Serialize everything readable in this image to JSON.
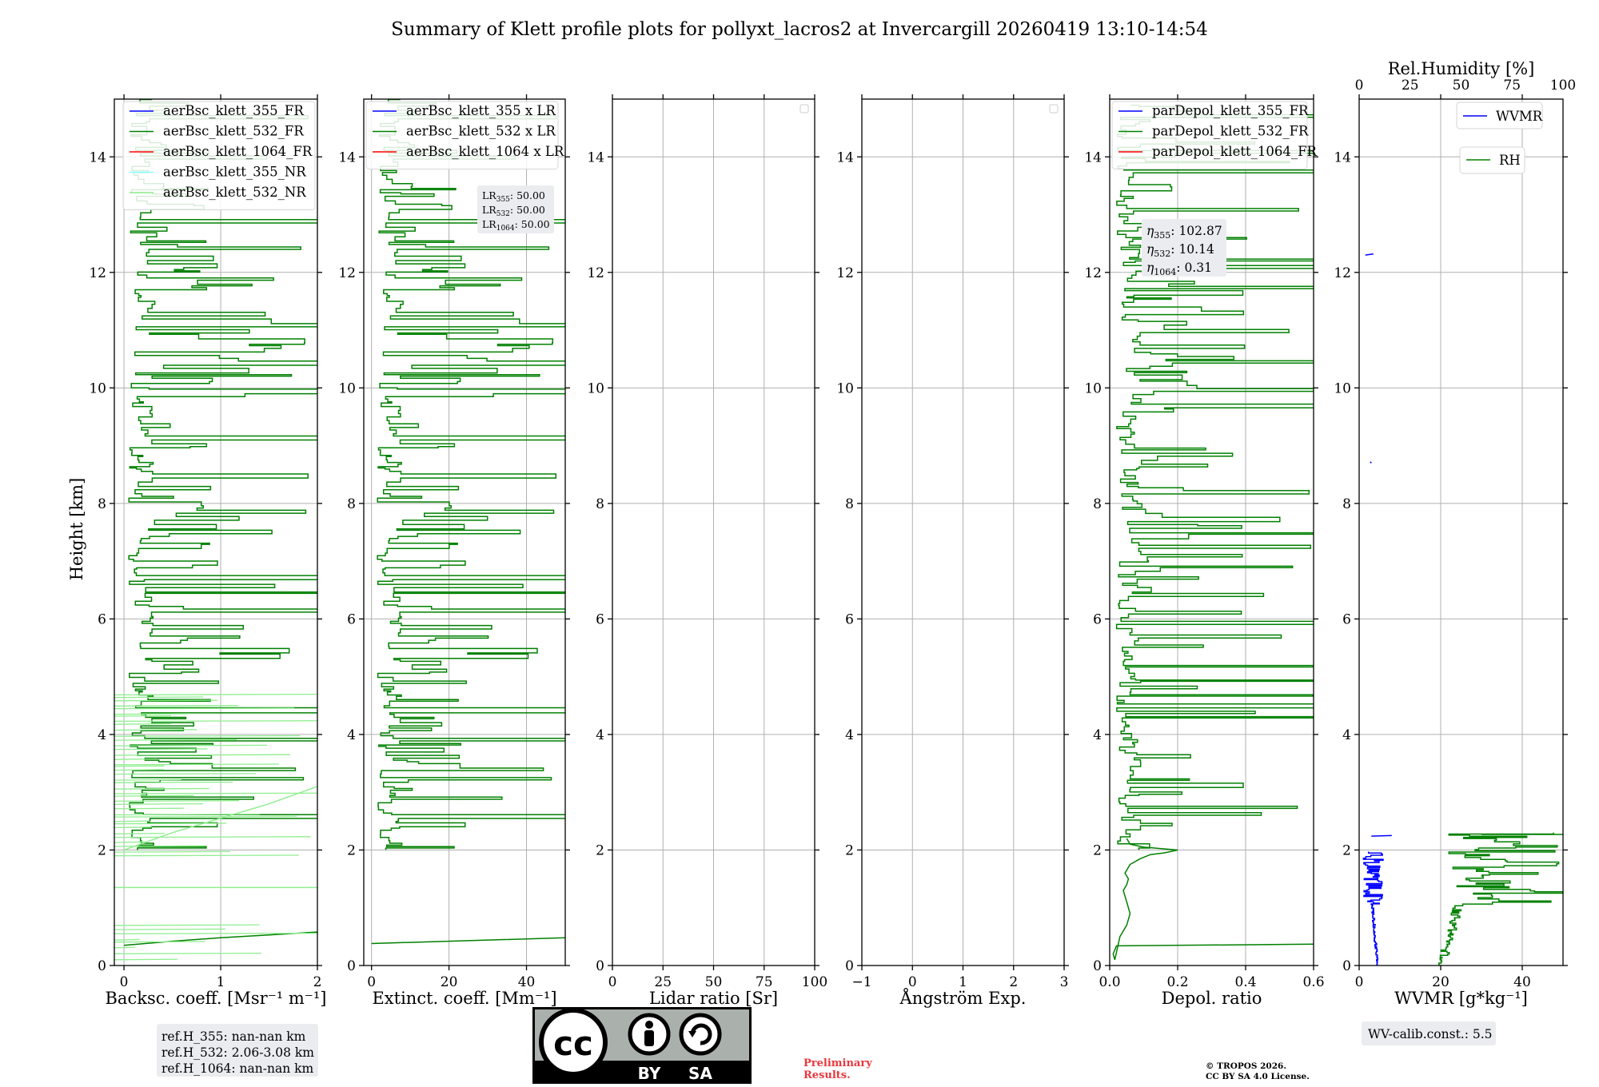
{
  "figure": {
    "title": "Summary of Klett profile plots for pollyxt_lacros2 at Invercargill 20260419 13:10-14:54",
    "ylabel": "Height [km]"
  },
  "colors": {
    "blue": "#0000ff",
    "green": "#008000",
    "red": "#ff0000",
    "cyan": "#80ffff",
    "lightgreen": "#90ee90"
  },
  "chart_data": [
    {
      "type": "line",
      "id": "bsc",
      "xlabel": "Backsc. coeff. [Msr⁻¹ m⁻¹]",
      "xlim": [
        -0.1,
        2
      ],
      "xticks": [
        {
          "v": 0,
          "label": "0"
        },
        {
          "v": 1,
          "label": "1"
        },
        {
          "v": 2,
          "label": "2"
        }
      ],
      "ylim": [
        0,
        15
      ],
      "yticks": [
        0,
        2,
        4,
        6,
        8,
        10,
        12,
        14
      ],
      "legend": [
        {
          "label": "aerBsc_klett_355_FR",
          "color": "#0000ff"
        },
        {
          "label": "aerBsc_klett_532_FR",
          "color": "#008000"
        },
        {
          "label": "aerBsc_klett_1064_FR",
          "color": "#ff0000"
        },
        {
          "label": "aerBsc_klett_355_NR",
          "color": "#80ffff"
        },
        {
          "label": "aerBsc_klett_532_NR",
          "color": "#90ee90"
        }
      ],
      "series": [
        {
          "name": "aerBsc_klett_532_FR",
          "color": "#008000",
          "kind": "spiky",
          "ranges": [
            [
              2.0,
              15.0
            ]
          ],
          "xmin": -0.1,
          "xmax": 2.0,
          "base": 0.05,
          "seed": 11
        },
        {
          "name": "aerBsc_klett_532_FR",
          "color": "#008000",
          "kind": "points",
          "x": [
            0.0,
            0.5,
            1.0,
            1.5,
            2.0
          ],
          "y": [
            0.35,
            0.42,
            0.48,
            0.53,
            0.58
          ]
        },
        {
          "name": "aerBsc_klett_532_NR",
          "color": "#90ee90",
          "kind": "hlines",
          "ranges": [
            [
              0.1,
              0.75
            ],
            [
              1.9,
              4.7
            ]
          ],
          "xmin": -0.1,
          "xmax": 2.0,
          "seed": 7
        },
        {
          "name": "aerBsc_klett_532_NR",
          "color": "#90ee90",
          "kind": "points",
          "x": [
            0.0,
            0.5,
            1.0,
            1.5,
            2.0
          ],
          "y": [
            2.0,
            2.3,
            2.55,
            2.8,
            3.1
          ]
        },
        {
          "name": "aerBsc_klett_532_NR",
          "color": "#90ee90",
          "kind": "points",
          "x": [
            -0.1,
            2.0
          ],
          "y": [
            1.35,
            1.35
          ]
        }
      ]
    },
    {
      "type": "line",
      "id": "ext",
      "xlabel": "Extinct. coeff. [Mm⁻¹]",
      "xlim": [
        -2,
        50
      ],
      "xticks": [
        {
          "v": 0,
          "label": "0"
        },
        {
          "v": 20,
          "label": "20"
        },
        {
          "v": 40,
          "label": "40"
        }
      ],
      "ylim": [
        0,
        15
      ],
      "yticks": [
        0,
        2,
        4,
        6,
        8,
        10,
        12,
        14
      ],
      "legend": [
        {
          "label": "aerBsc_klett_355 x LR",
          "color": "#0000ff"
        },
        {
          "label": "aerBsc_klett_532 x LR",
          "color": "#008000"
        },
        {
          "label": "aerBsc_klett_1064 x LR",
          "color": "#ff0000"
        }
      ],
      "series": [
        {
          "name": "aerBsc_klett_532 x LR",
          "color": "#008000",
          "kind": "spiky",
          "ranges": [
            [
              2.0,
              15.0
            ]
          ],
          "xmin": -2,
          "xmax": 50,
          "base": 1.5,
          "seed": 11
        },
        {
          "name": "aerBsc_klett_532 x LR",
          "color": "#008000",
          "kind": "points",
          "x": [
            0,
            25,
            50
          ],
          "y": [
            0.38,
            0.43,
            0.48
          ]
        }
      ]
    },
    {
      "type": "line",
      "id": "lr",
      "xlabel": "Lidar ratio [Sr]",
      "xlim": [
        0,
        100
      ],
      "xticks": [
        {
          "v": 0,
          "label": "0"
        },
        {
          "v": 25,
          "label": "25"
        },
        {
          "v": 50,
          "label": "50"
        },
        {
          "v": 75,
          "label": "75"
        },
        {
          "v": 100,
          "label": "100"
        }
      ],
      "ylim": [
        0,
        15
      ],
      "yticks": [
        0,
        2,
        4,
        6,
        8,
        10,
        12,
        14
      ],
      "series": []
    },
    {
      "type": "line",
      "id": "ang",
      "xlabel": "Ångström Exp.",
      "xlim": [
        -1,
        3
      ],
      "xticks": [
        {
          "v": -1,
          "label": "−1"
        },
        {
          "v": 0,
          "label": "0"
        },
        {
          "v": 1,
          "label": "1"
        },
        {
          "v": 2,
          "label": "2"
        },
        {
          "v": 3,
          "label": "3"
        }
      ],
      "ylim": [
        0,
        15
      ],
      "yticks": [
        0,
        2,
        4,
        6,
        8,
        10,
        12,
        14
      ],
      "series": []
    },
    {
      "type": "line",
      "id": "dep",
      "xlabel": "Depol. ratio",
      "xlim": [
        0,
        0.6
      ],
      "xticks": [
        {
          "v": 0,
          "label": "0.0"
        },
        {
          "v": 0.2,
          "label": "0.2"
        },
        {
          "v": 0.4,
          "label": "0.4"
        },
        {
          "v": 0.6,
          "label": "0.6"
        }
      ],
      "ylim": [
        0,
        15
      ],
      "yticks": [
        0,
        2,
        4,
        6,
        8,
        10,
        12,
        14
      ],
      "legend": [
        {
          "label": "parDepol_klett_355_FR",
          "color": "#0000ff"
        },
        {
          "label": "parDepol_klett_532_FR",
          "color": "#008000"
        },
        {
          "label": "parDepol_klett_1064_FR",
          "color": "#ff0000"
        }
      ],
      "series": [
        {
          "name": "parDepol_klett_532_FR",
          "color": "#008000",
          "kind": "spiky",
          "ranges": [
            [
              2.0,
              14.9
            ]
          ],
          "xmin": 0,
          "xmax": 0.6,
          "base": 0.02,
          "seed": 5
        },
        {
          "name": "parDepol_klett_532_FR",
          "color": "#008000",
          "kind": "points",
          "x": [
            0.6,
            0.02,
            0.01,
            0.015,
            0.03,
            0.05,
            0.06,
            0.05,
            0.04,
            0.05,
            0.055,
            0.045,
            0.06,
            0.09,
            0.12,
            0.16,
            0.2,
            0.1,
            0.06,
            0.05
          ],
          "y": [
            0.37,
            0.34,
            0.2,
            0.1,
            0.5,
            0.7,
            0.9,
            1.1,
            1.3,
            1.4,
            1.5,
            1.6,
            1.75,
            1.85,
            1.92,
            1.95,
            2.0,
            2.05,
            2.1,
            2.2
          ]
        }
      ]
    },
    {
      "type": "line",
      "id": "wv",
      "xlabel": "WVMR [g*kg⁻¹]",
      "xlim": [
        0,
        50
      ],
      "xticks": [
        {
          "v": 0,
          "label": "0"
        },
        {
          "v": 20,
          "label": "20"
        },
        {
          "v": 40,
          "label": "40"
        }
      ],
      "top_xlabel": "Rel.Humidity [%]",
      "top_xlim": [
        0,
        100
      ],
      "top_xticks": [
        {
          "v": 0,
          "label": "0"
        },
        {
          "v": 25,
          "label": "25"
        },
        {
          "v": 50,
          "label": "50"
        },
        {
          "v": 75,
          "label": "75"
        },
        {
          "v": 100,
          "label": "100"
        }
      ],
      "ylim": [
        0,
        15
      ],
      "yticks": [
        0,
        2,
        4,
        6,
        8,
        10,
        12,
        14
      ],
      "legend": [
        {
          "label": "WVMR",
          "color": "#0000ff"
        },
        {
          "label": "RH",
          "color": "#008000"
        }
      ],
      "series": [
        {
          "name": "RH",
          "color": "#008000",
          "kind": "rh"
        },
        {
          "name": "WVMR",
          "color": "#0000ff",
          "kind": "wvmr"
        },
        {
          "name": "WVMR",
          "color": "#0000ff",
          "kind": "points",
          "x": [
            1.5,
            3.5
          ],
          "y": [
            12.3,
            12.32
          ]
        },
        {
          "name": "WVMR",
          "color": "#0000ff",
          "kind": "points",
          "x": [
            2.7,
            3.0
          ],
          "y": [
            8.72,
            8.7
          ]
        }
      ]
    }
  ],
  "annotations": {
    "lr": [
      "LR",
      "355",
      ": 50.00",
      "LR",
      "532",
      ": 50.00",
      "LR",
      "1064",
      ": 50.00"
    ],
    "eta": [
      "η",
      "355",
      ": 102.87",
      "η",
      "532",
      ": 10.14",
      "η",
      "1064",
      ": 0.31"
    ],
    "refh": [
      "ref.H_355: nan-nan km",
      "ref.H_532: 2.06-3.08 km",
      "ref.H_1064: nan-nan km"
    ],
    "wvcalib": "WV-calib.const.: 5.5",
    "prelim": [
      "Preliminary",
      "Results."
    ],
    "copyright": [
      "© TROPOS 2026.",
      "CC BY SA 4.0 License."
    ],
    "cc_logo": {
      "text1": "cc",
      "text2": "BY",
      "text3": "SA"
    }
  }
}
